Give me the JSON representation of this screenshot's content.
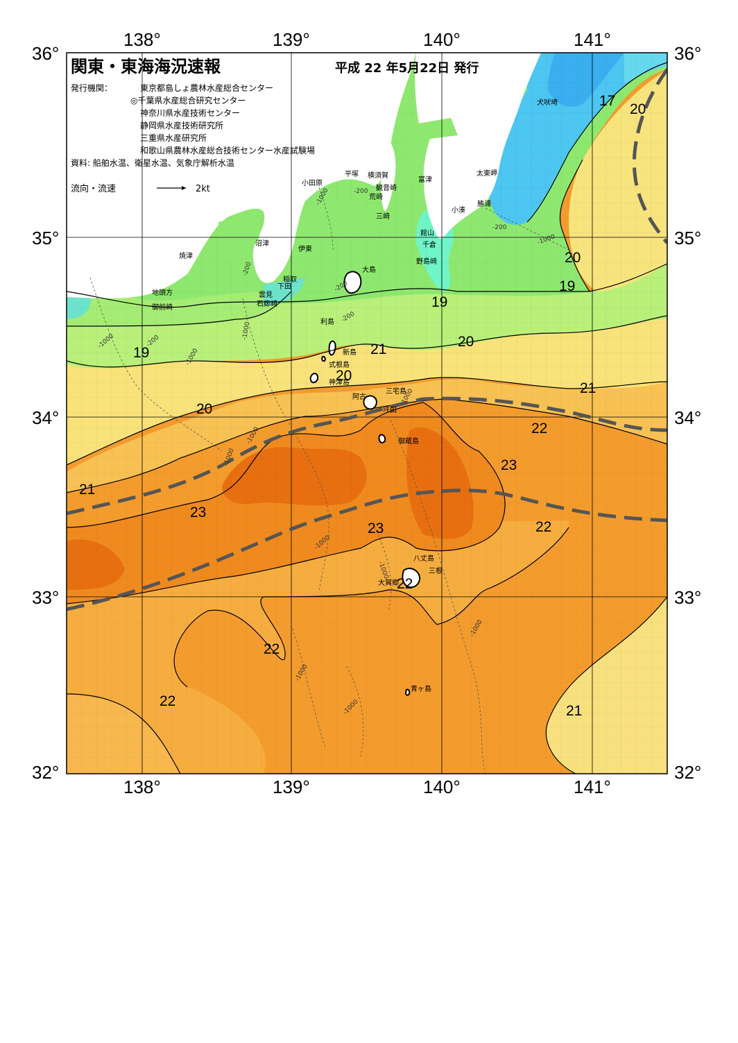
{
  "title": "関東・東海海況速報",
  "issue_date": "平成 22 年5月22日 発行",
  "issuer_label": "発行機関：",
  "issuers": [
    "東京都島しょ農林水産総合センター",
    "◎千葉県水産総合研究センター",
    "神奈川県水産技術センター",
    "静岡県水産技術研究所",
    "三重県水産研究所",
    "和歌山県農林水産総合技術センター水産試験場"
  ],
  "sources": "資料: 船舶水温、衛星水温、気象庁解析水温",
  "current_legend": {
    "label": "流向・流速",
    "speed": "2kt"
  },
  "lon_labels": [
    "138°",
    "139°",
    "140°",
    "141°"
  ],
  "lat_labels": [
    "36°",
    "35°",
    "34°",
    "33°",
    "32°"
  ],
  "temperature_labels": [
    "17",
    "20",
    "20",
    "19",
    "19",
    "20",
    "19",
    "21",
    "20",
    "21",
    "20",
    "22",
    "23",
    "21",
    "23",
    "23",
    "22",
    "22",
    "22",
    "22",
    "21"
  ],
  "depth_labels": [
    "-1000",
    "-200",
    "-200",
    "-1000",
    "-200",
    "-200",
    "-200",
    "-1000",
    "-1000",
    "-200",
    "-1000",
    "-1000",
    "-1000",
    "-1000",
    "-1000",
    "-1000",
    "-1000",
    "-1000",
    "-1000"
  ],
  "places": {
    "inubosaki": "犬吠埼",
    "taitomisaki": "太東岬",
    "katsuura": "勝浦",
    "kominato": "小湊",
    "tomitsu": "富津",
    "kannonzaki": "観音崎",
    "yokosuka": "横須賀",
    "arasaki": "荒崎",
    "misaki": "三崎",
    "hiratsuka": "平塚",
    "odawara": "小田原",
    "tateyama": "館山",
    "chikura": "千倉",
    "nojimazaki": "野島崎",
    "numazu": "沼津",
    "ito": "伊東",
    "inatori": "稲取",
    "shimoda": "下田",
    "kumomi": "雲見",
    "irozaki": "石廊崎",
    "yaizu": "焼津",
    "jitokata": "地頭方",
    "omaezaki": "御前崎",
    "oshima": "大島",
    "toshima": "利島",
    "niijima": "新島",
    "shikinejima": "式根島",
    "kozushima": "神津島",
    "miyakejima": "三宅島",
    "ako": "阿古",
    "tsubota": "坪田",
    "mikurajima": "御蔵島",
    "hachijojima": "八丈島",
    "mitsune": "三根",
    "okago": "大賀郷",
    "aogashima": "青ヶ島"
  }
}
